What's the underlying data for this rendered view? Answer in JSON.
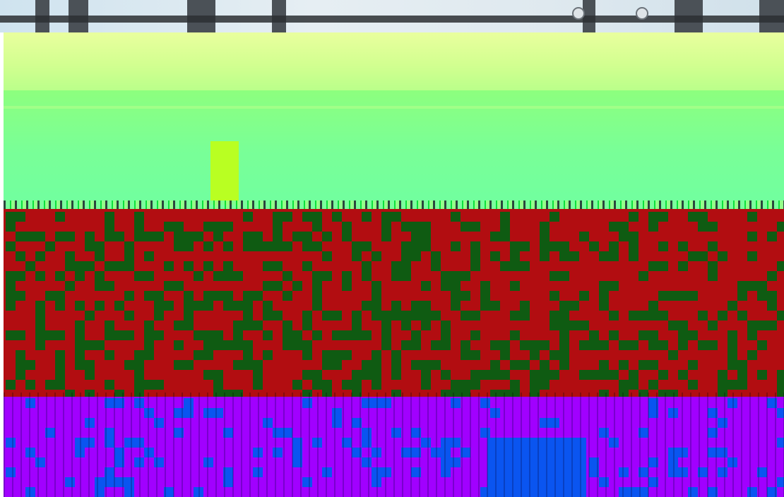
{
  "image": {
    "palette": {
      "sky": "#dfe9ef",
      "structure": "#4b5157",
      "yellow_band": "#e9ff9e",
      "green_band": "#79ff97",
      "red_block": "#b20d11",
      "dark_green_block": "#0f5b12",
      "purple_block": "#a100ff",
      "blue_block": "#0a55f0"
    }
  }
}
